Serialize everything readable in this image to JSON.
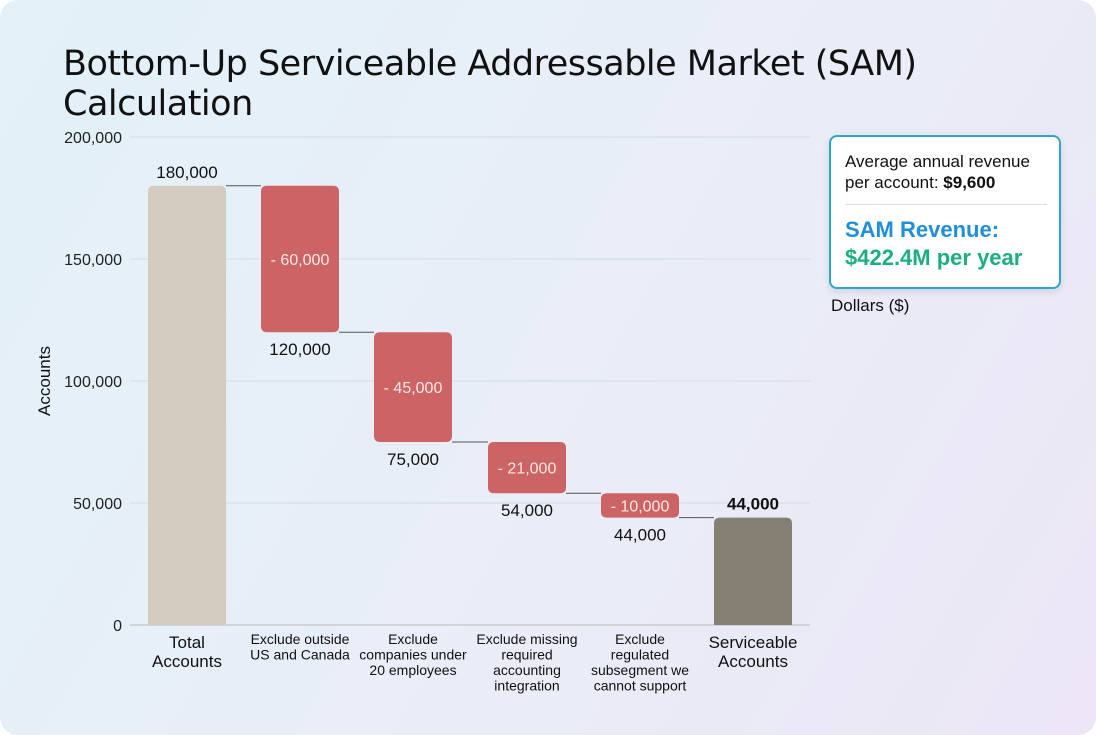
{
  "title": "Bottom-Up Serviceable Addressable Market (SAM) Calculation",
  "info_box": {
    "avg_label": "Average annual revenue per account:",
    "avg_value": "$9,600",
    "sam_label": "SAM Revenue:",
    "sam_value": "$422.4M per year"
  },
  "secondary_label": "Dollars ($)",
  "colors": {
    "total": "#d4ccc0",
    "decrease": "#cc6466",
    "final": "#858072",
    "blue": "#1e8fd8",
    "green": "#1aaf82"
  },
  "chart_data": {
    "type": "waterfall",
    "ylabel": "Accounts",
    "ylim": [
      0,
      200000
    ],
    "yticks": [
      0,
      50000,
      100000,
      150000,
      200000
    ],
    "ytick_labels": [
      "0",
      "50,000",
      "100,000",
      "150,000",
      "200,000"
    ],
    "grid": true,
    "categories": [
      "Total Accounts",
      "Exclude outside US and Canada",
      "Exclude companies under 20 employees",
      "Exclude missing required accounting integration",
      "Exclude regulated subsegment we cannot support",
      "Serviceable Accounts"
    ],
    "steps": [
      {
        "kind": "total",
        "value": 180000,
        "label": "180,000"
      },
      {
        "kind": "decrease",
        "delta": -60000,
        "delta_label": "- 60,000",
        "end": 120000,
        "end_label": "120,000"
      },
      {
        "kind": "decrease",
        "delta": -45000,
        "delta_label": "- 45,000",
        "end": 75000,
        "end_label": "75,000"
      },
      {
        "kind": "decrease",
        "delta": -21000,
        "delta_label": "- 21,000",
        "end": 54000,
        "end_label": "54,000"
      },
      {
        "kind": "decrease",
        "delta": -10000,
        "delta_label": "- 10,000",
        "end": 44000,
        "end_label": "44,000"
      },
      {
        "kind": "final",
        "value": 44000,
        "label": "44,000"
      }
    ]
  }
}
